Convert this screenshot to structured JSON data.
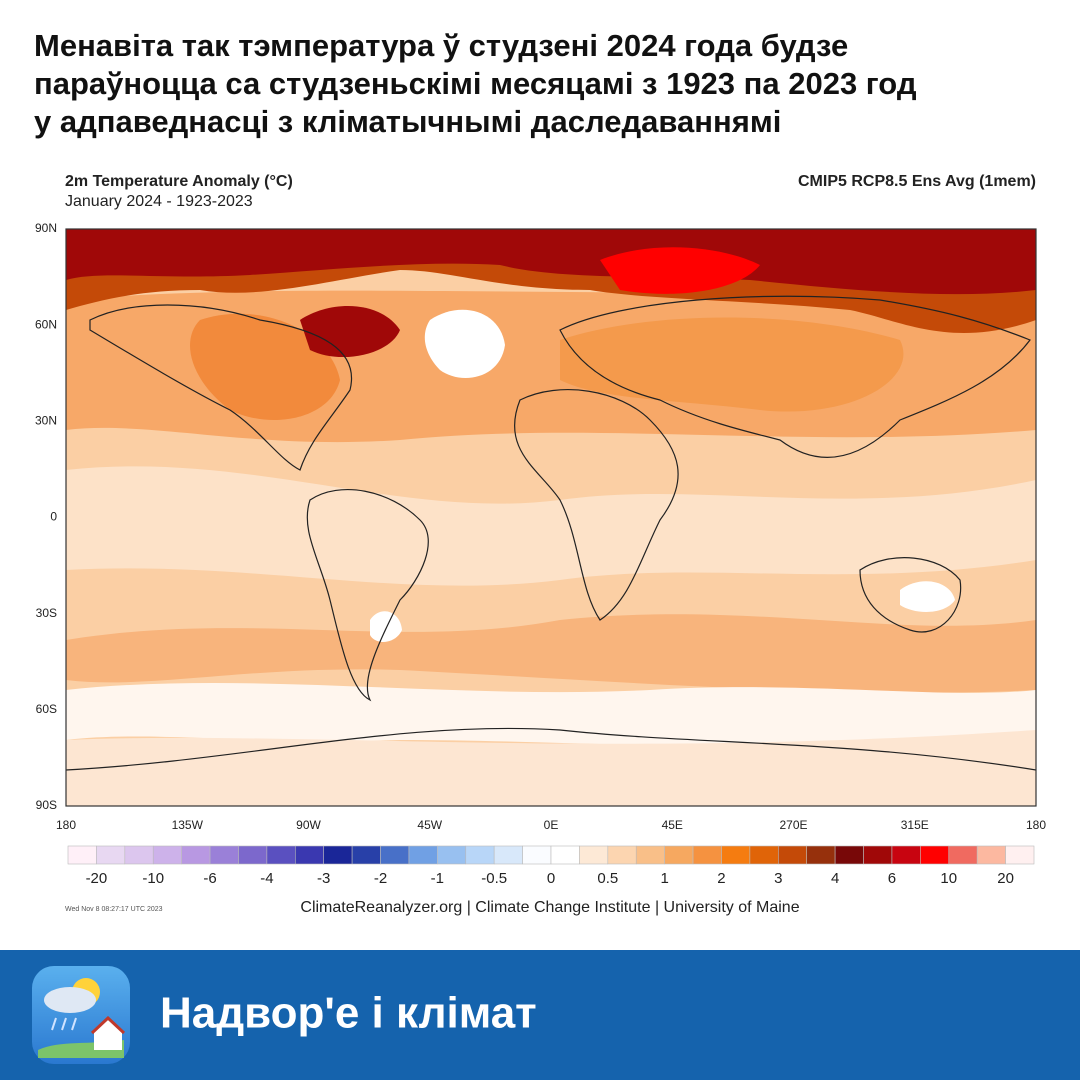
{
  "header": {
    "title_lines": [
      "Менавіта так тэмпература ў студзені 2024 года будзе",
      "параўноцца са студзеньскімі месяцамі з 1923 па 2023 год",
      "у адпаведнасці з кліматычнымі даследаваннямі"
    ]
  },
  "map": {
    "title": "2m Temperature Anomaly (°C)",
    "subtitle": "January 2024 - 1923-2023",
    "model": "CMIP5 RCP8.5 Ens Avg (1mem)",
    "lat_labels": [
      "90N",
      "60N",
      "30N",
      "0",
      "30S",
      "60S",
      "90S"
    ],
    "lon_labels": [
      "180",
      "135W",
      "90W",
      "45W",
      "0E",
      "45E",
      "270E",
      "315E",
      "180"
    ]
  },
  "colorbar": {
    "colors": [
      "#fff0f8",
      "#e8d8f2",
      "#dcc6ee",
      "#cdb2ea",
      "#b898e2",
      "#9a80d8",
      "#7c68cc",
      "#5a50c0",
      "#3a38b0",
      "#1a2698",
      "#2840a8",
      "#4870c8",
      "#70a0e4",
      "#98c0f0",
      "#b8d6f8",
      "#d8e8fa",
      "#fafcff",
      "#ffffff",
      "#fde9d6",
      "#fcd5b0",
      "#f9bf88",
      "#f6a860",
      "#f59240",
      "#f57c10",
      "#e06408",
      "#c44a08",
      "#96300c",
      "#780808",
      "#a00808",
      "#c80410",
      "#ff0000",
      "#f06a60",
      "#fcb8a0",
      "#fff0f0"
    ],
    "labels": [
      "-20",
      "-10",
      "-6",
      "-4",
      "-3",
      "-2",
      "-1",
      "-0.5",
      "0",
      "0.5",
      "1",
      "2",
      "3",
      "4",
      "6",
      "10",
      "20"
    ]
  },
  "credits": {
    "source": "ClimateReanalyzer.org | Climate Change Institute | University of Maine",
    "timestamp": "Wed Nov  8 08:27:17 UTC 2023"
  },
  "brand": {
    "name": "Надвор'е і клімат"
  }
}
